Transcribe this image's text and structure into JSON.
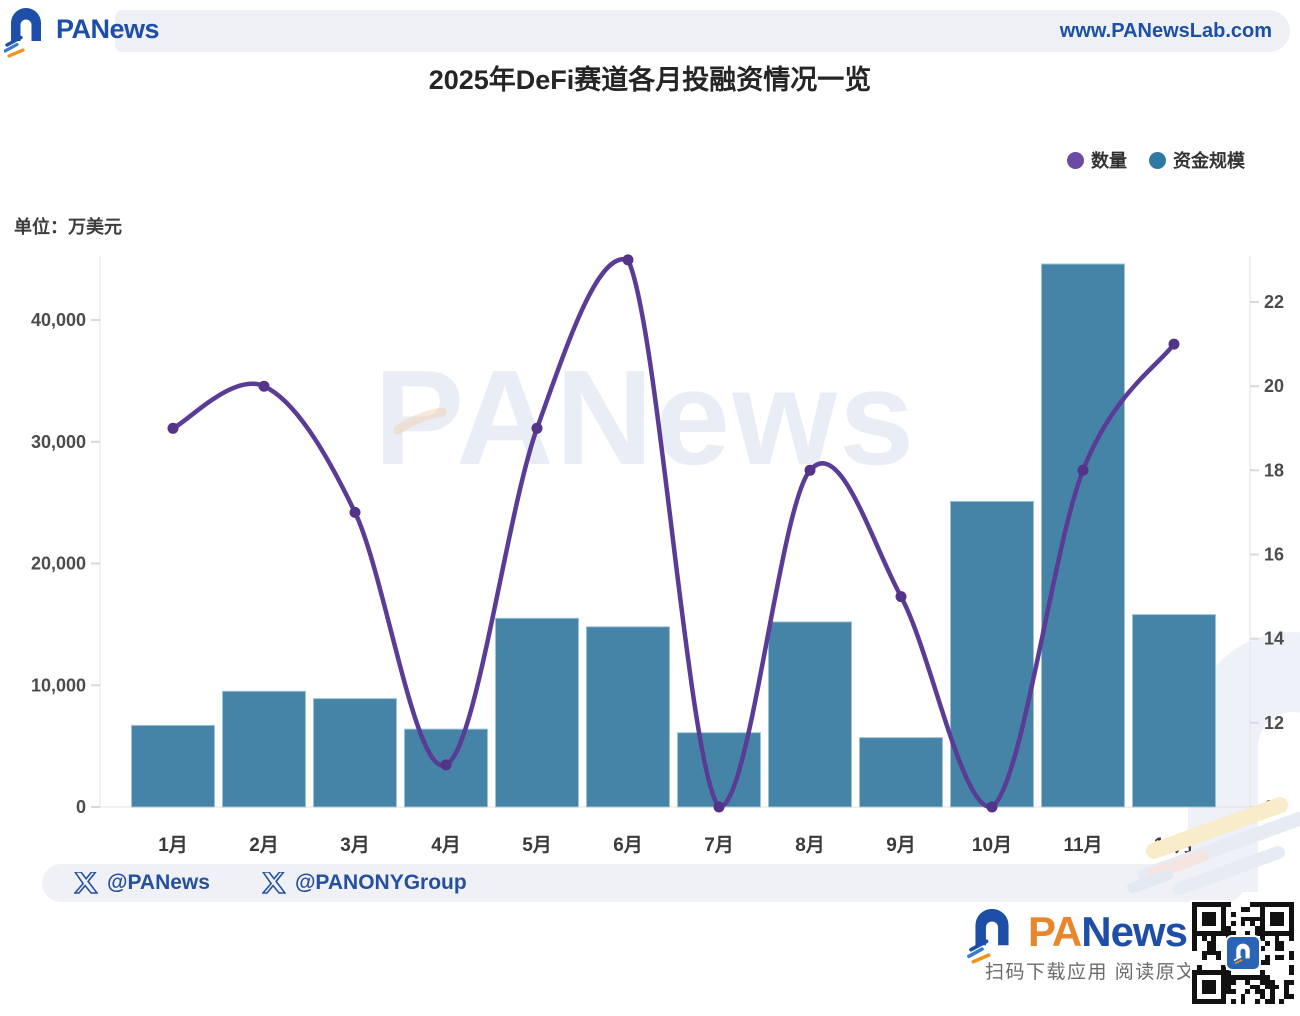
{
  "header": {
    "brand": "PANews",
    "url": "www.PANewsLab.com"
  },
  "title": "2025年DeFi赛道各月投融资情况一览",
  "watermark": "PANews",
  "chart_data": {
    "type": "bar+line combo",
    "categories": [
      "1月",
      "2月",
      "3月",
      "4月",
      "5月",
      "6月",
      "7月",
      "8月",
      "9月",
      "10月",
      "11月",
      "12月"
    ],
    "series": [
      {
        "name": "数量",
        "type": "line",
        "axis": "right",
        "color": "#5a3b96",
        "legend_color": "#6b4ba3",
        "values": [
          19,
          20,
          17,
          11,
          19,
          23,
          10,
          18,
          15,
          10,
          18,
          21
        ]
      },
      {
        "name": "资金规模",
        "type": "bar",
        "axis": "left",
        "color": "#4584a6",
        "legend_color": "#2e7aa4",
        "values": [
          6700,
          9500,
          8900,
          6400,
          15500,
          14800,
          6100,
          15200,
          5700,
          25100,
          44600,
          15800
        ]
      }
    ],
    "left_axis": {
      "title": "单位：万美元",
      "unit": "万美元",
      "ticks": [
        0,
        10000,
        20000,
        30000,
        40000
      ],
      "min": 0,
      "max": 45000
    },
    "right_axis": {
      "ticks": [
        10,
        12,
        14,
        16,
        18,
        20,
        22
      ],
      "min": 10,
      "max": 23.1
    },
    "grid": false,
    "legend_position": "top-right"
  },
  "footer": {
    "handle1": "@PANews",
    "handle2": "@PANONYGroup",
    "brand_pa": "PA",
    "brand_news": "News",
    "scan_text": "扫码下载应用 阅读原文"
  }
}
